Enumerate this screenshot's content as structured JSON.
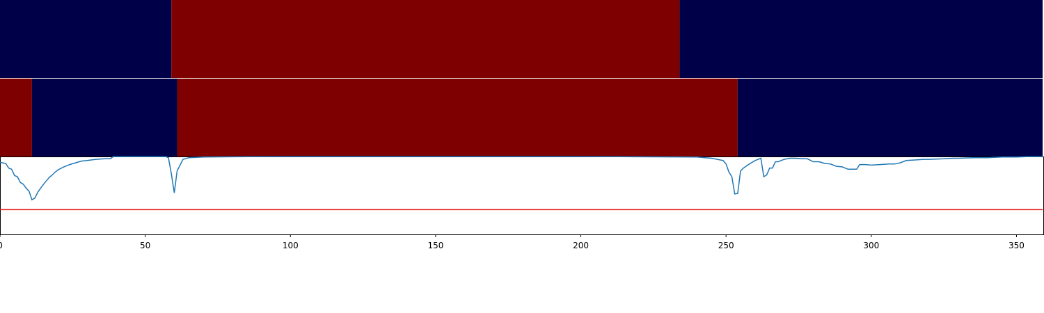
{
  "chart_data": {
    "type": "line",
    "title": "",
    "xlabel": "",
    "ylabel": "",
    "xlim": [
      0,
      359
    ],
    "ylim": [
      -1.35,
      0
    ],
    "x_ticks": [
      0,
      50,
      100,
      150,
      200,
      250,
      300,
      350
    ],
    "x_tick_labels": [
      "0",
      "50",
      "100",
      "150",
      "200",
      "250",
      "300",
      "350"
    ],
    "grid": false,
    "colors": {
      "state_low": "#000048",
      "state_high": "#7f0000",
      "line": "#1f77b4",
      "threshold": "#e41a1c",
      "axis": "#000000"
    },
    "state_bands": [
      {
        "segments": [
          {
            "start": 0,
            "end": 59,
            "state": "low"
          },
          {
            "start": 59,
            "end": 234,
            "state": "high"
          },
          {
            "start": 234,
            "end": 359,
            "state": "low"
          }
        ]
      },
      {
        "segments": [
          {
            "start": 0,
            "end": 11,
            "state": "high"
          },
          {
            "start": 11,
            "end": 61,
            "state": "low"
          },
          {
            "start": 61,
            "end": 254,
            "state": "high"
          },
          {
            "start": 254,
            "end": 359,
            "state": "low"
          }
        ]
      }
    ],
    "threshold": -0.92,
    "series": [
      {
        "x": [
          0,
          2,
          3,
          4,
          5,
          6,
          7,
          8,
          9,
          10,
          11,
          12,
          13,
          14,
          15,
          16,
          17,
          18,
          19,
          20,
          22,
          24,
          26,
          28,
          30,
          33,
          36,
          38,
          39,
          40,
          45,
          50,
          55,
          57,
          58,
          59,
          60,
          61,
          62,
          63,
          65,
          70,
          80,
          100,
          150,
          200,
          240,
          245,
          249,
          250,
          251,
          252,
          253,
          254,
          255,
          256,
          258,
          260,
          262,
          263,
          264,
          265,
          266,
          267,
          268,
          270,
          272,
          274,
          276,
          278,
          280,
          282,
          284,
          286,
          288,
          290,
          292,
          294,
          295,
          296,
          298,
          300,
          303,
          306,
          308,
          310,
          312,
          315,
          318,
          320,
          325,
          328,
          330,
          335,
          340,
          345,
          350,
          355,
          359
        ],
        "y": [
          -0.1,
          -0.12,
          -0.2,
          -0.22,
          -0.33,
          -0.35,
          -0.45,
          -0.48,
          -0.55,
          -0.6,
          -0.75,
          -0.72,
          -0.62,
          -0.55,
          -0.48,
          -0.42,
          -0.36,
          -0.32,
          -0.27,
          -0.23,
          -0.18,
          -0.14,
          -0.11,
          -0.08,
          -0.07,
          -0.05,
          -0.04,
          -0.04,
          0.0,
          0.02,
          0.03,
          0.03,
          0.03,
          0.01,
          -0.02,
          -0.3,
          -0.63,
          -0.25,
          -0.15,
          -0.05,
          -0.02,
          -0.01,
          -0.005,
          0.0,
          0.0,
          0.0,
          -0.01,
          -0.03,
          -0.07,
          -0.13,
          -0.27,
          -0.35,
          -0.65,
          -0.64,
          -0.25,
          -0.2,
          -0.13,
          -0.07,
          -0.03,
          -0.35,
          -0.32,
          -0.2,
          -0.2,
          -0.09,
          -0.09,
          -0.05,
          -0.03,
          -0.03,
          -0.04,
          -0.04,
          -0.09,
          -0.09,
          -0.12,
          -0.13,
          -0.17,
          -0.18,
          -0.22,
          -0.22,
          -0.22,
          -0.14,
          -0.14,
          -0.15,
          -0.14,
          -0.13,
          -0.13,
          -0.11,
          -0.07,
          -0.06,
          -0.05,
          -0.05,
          -0.04,
          -0.03,
          -0.03,
          -0.02,
          -0.02,
          -0.01,
          -0.01,
          0.0,
          0.0
        ]
      }
    ]
  }
}
